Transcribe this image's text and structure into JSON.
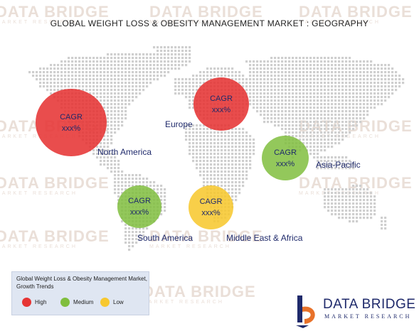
{
  "title": "GLOBAL WEIGHT LOSS & OBESITY MANAGEMENT MARKET : GEOGRAPHY",
  "watermark": {
    "main": "DATA BRIDGE",
    "sub": "MARKET RESEARCH"
  },
  "colors": {
    "high": "#e63434",
    "medium": "#80be3e",
    "low": "#f7c830",
    "map_dots": "#cfcfcf",
    "text": "#1f2a6b"
  },
  "regions": [
    {
      "id": "north-america",
      "label": "North America",
      "cagr_label": "CAGR",
      "cagr_value": "xxx%",
      "trend": "high"
    },
    {
      "id": "europe",
      "label": "Europe",
      "cagr_label": "CAGR",
      "cagr_value": "xxx%",
      "trend": "high"
    },
    {
      "id": "asia-pacific",
      "label": "Asia-Pacific",
      "cagr_label": "CAGR",
      "cagr_value": "xxx%",
      "trend": "medium"
    },
    {
      "id": "south-america",
      "label": "South America",
      "cagr_label": "CAGR",
      "cagr_value": "xxx%",
      "trend": "medium"
    },
    {
      "id": "middle-east-africa",
      "label": "Middle East & Africa",
      "cagr_label": "CAGR",
      "cagr_value": "xxx%",
      "trend": "low"
    }
  ],
  "legend": {
    "title": "Global Weight Loss & Obesity Management Market, Growth Trends",
    "items": [
      {
        "label": "High",
        "color": "#e63434"
      },
      {
        "label": "Medium",
        "color": "#80be3e"
      },
      {
        "label": "Low",
        "color": "#f7c830"
      }
    ]
  },
  "logo": {
    "main": "DATA BRIDGE",
    "sub": "MARKET RESEARCH"
  }
}
